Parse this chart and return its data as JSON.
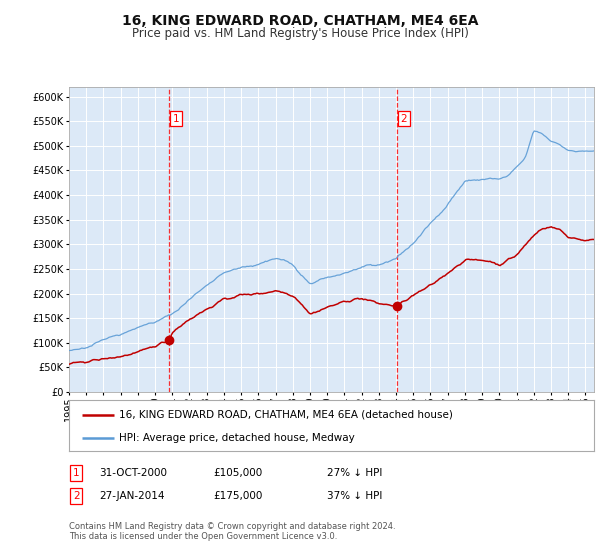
{
  "title": "16, KING EDWARD ROAD, CHATHAM, ME4 6EA",
  "subtitle": "Price paid vs. HM Land Registry's House Price Index (HPI)",
  "ylim": [
    0,
    620000
  ],
  "xlim_start": 1995.0,
  "xlim_end": 2025.5,
  "background_color": "#ffffff",
  "plot_bg_color": "#dce9f7",
  "grid_color": "#ffffff",
  "hpi_line_color": "#5b9bd5",
  "price_line_color": "#c00000",
  "sale1_year": 2000.83,
  "sale1_price": 105000,
  "sale2_year": 2014.07,
  "sale2_price": 175000,
  "legend_label_red": "16, KING EDWARD ROAD, CHATHAM, ME4 6EA (detached house)",
  "legend_label_blue": "HPI: Average price, detached house, Medway",
  "table_row1": [
    "1",
    "31-OCT-2000",
    "£105,000",
    "27% ↓ HPI"
  ],
  "table_row2": [
    "2",
    "27-JAN-2014",
    "£175,000",
    "37% ↓ HPI"
  ],
  "footnote": "Contains HM Land Registry data © Crown copyright and database right 2024.\nThis data is licensed under the Open Government Licence v3.0.",
  "title_fontsize": 10,
  "subtitle_fontsize": 8.5,
  "tick_fontsize": 7,
  "legend_fontsize": 7.5,
  "table_fontsize": 7.5,
  "footnote_fontsize": 6
}
